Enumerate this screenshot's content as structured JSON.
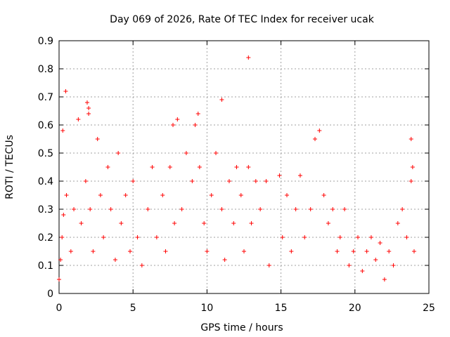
{
  "chart_data": {
    "type": "scatter",
    "title": "Day 069 of 2026, Rate Of TEC Index for receiver ucak",
    "xlabel": "GPS time / hours",
    "ylabel": "ROTI / TECUs",
    "xlim": [
      0,
      25
    ],
    "ylim": [
      0,
      0.9
    ],
    "xticks": [
      "0",
      "5",
      "10",
      "15",
      "20",
      "25"
    ],
    "yticks": [
      "0",
      "0.1",
      "0.2",
      "0.3",
      "0.4",
      "0.5",
      "0.6",
      "0.7",
      "0.8",
      "0.9"
    ],
    "grid": true,
    "marker": "+",
    "color": "#ff0000",
    "series": [
      {
        "x": [
          0.0,
          0.1,
          0.2,
          0.3,
          0.25,
          0.5,
          0.8,
          1.0,
          1.3,
          1.5,
          1.8,
          2.0,
          2.1,
          2.3,
          2.6,
          2.8,
          3.0,
          3.3,
          3.5,
          3.8,
          4.0,
          4.2,
          4.5,
          4.8,
          5.0,
          5.3,
          5.6,
          6.0,
          6.3,
          6.6,
          7.0,
          7.2,
          7.5,
          7.8,
          8.0,
          8.3,
          8.6,
          9.0,
          9.2,
          9.5,
          9.8,
          10.0,
          10.3,
          10.6,
          11.0,
          11.2,
          11.5,
          11.8,
          12.0,
          12.3,
          12.5,
          12.8,
          13.0,
          13.3,
          13.6,
          14.0,
          14.2,
          14.9,
          15.1,
          15.4,
          15.7,
          16.0,
          16.3,
          16.6,
          17.0,
          17.3,
          17.6,
          17.9,
          18.2,
          18.5,
          18.8,
          19.0,
          19.3,
          19.6,
          19.9,
          20.2,
          20.5,
          20.8,
          21.1,
          21.4,
          21.7,
          22.0,
          22.3,
          22.6,
          22.9,
          23.2,
          23.5,
          23.8,
          24.0,
          23.9,
          23.8,
          1.9,
          2.0,
          7.7,
          9.4,
          11.0,
          12.8,
          0.45
        ],
        "y": [
          0.05,
          0.12,
          0.2,
          0.28,
          0.58,
          0.35,
          0.15,
          0.3,
          0.62,
          0.25,
          0.4,
          0.66,
          0.3,
          0.15,
          0.55,
          0.35,
          0.2,
          0.45,
          0.3,
          0.12,
          0.5,
          0.25,
          0.35,
          0.15,
          0.4,
          0.2,
          0.1,
          0.3,
          0.45,
          0.2,
          0.35,
          0.15,
          0.45,
          0.25,
          0.62,
          0.3,
          0.5,
          0.4,
          0.6,
          0.45,
          0.25,
          0.15,
          0.35,
          0.5,
          0.3,
          0.12,
          0.4,
          0.25,
          0.45,
          0.35,
          0.15,
          0.45,
          0.25,
          0.4,
          0.3,
          0.4,
          0.1,
          0.42,
          0.2,
          0.35,
          0.15,
          0.3,
          0.42,
          0.2,
          0.3,
          0.55,
          0.58,
          0.35,
          0.25,
          0.3,
          0.15,
          0.2,
          0.3,
          0.1,
          0.15,
          0.2,
          0.08,
          0.15,
          0.2,
          0.12,
          0.18,
          0.05,
          0.15,
          0.1,
          0.25,
          0.3,
          0.2,
          0.55,
          0.15,
          0.45,
          0.4,
          0.68,
          0.64,
          0.6,
          0.64,
          0.69,
          0.84,
          0.72
        ]
      }
    ]
  }
}
